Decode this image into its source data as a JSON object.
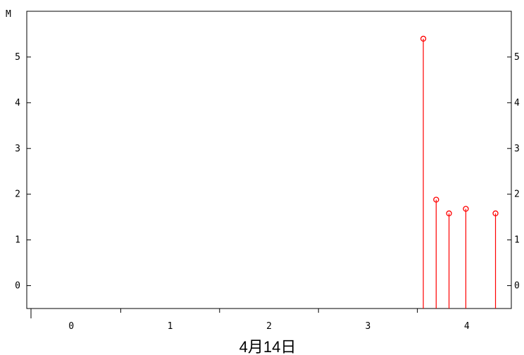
{
  "chart_data": {
    "type": "scatter",
    "style": "stem",
    "x_tick_labels": [
      "0",
      "1",
      "2",
      "3",
      "4"
    ],
    "x_ticks": [
      0,
      1,
      2,
      3,
      4
    ],
    "xlim": [
      -0.45,
      4.45
    ],
    "xlabel": "4月14日",
    "y_tick_labels": [
      "0",
      "1",
      "2",
      "3",
      "4",
      "5"
    ],
    "y_ticks": [
      0,
      1,
      2,
      3,
      4,
      5
    ],
    "ylim": [
      -0.5,
      6.0
    ],
    "y_unit": "M",
    "right_axis": true,
    "grid": false,
    "series": [
      {
        "color": "#ff0000",
        "points": [
          {
            "x": 3.56,
            "y": 5.4
          },
          {
            "x": 3.69,
            "y": 1.88
          },
          {
            "x": 3.82,
            "y": 1.58
          },
          {
            "x": 3.99,
            "y": 1.68
          },
          {
            "x": 4.29,
            "y": 1.58
          }
        ]
      }
    ]
  }
}
